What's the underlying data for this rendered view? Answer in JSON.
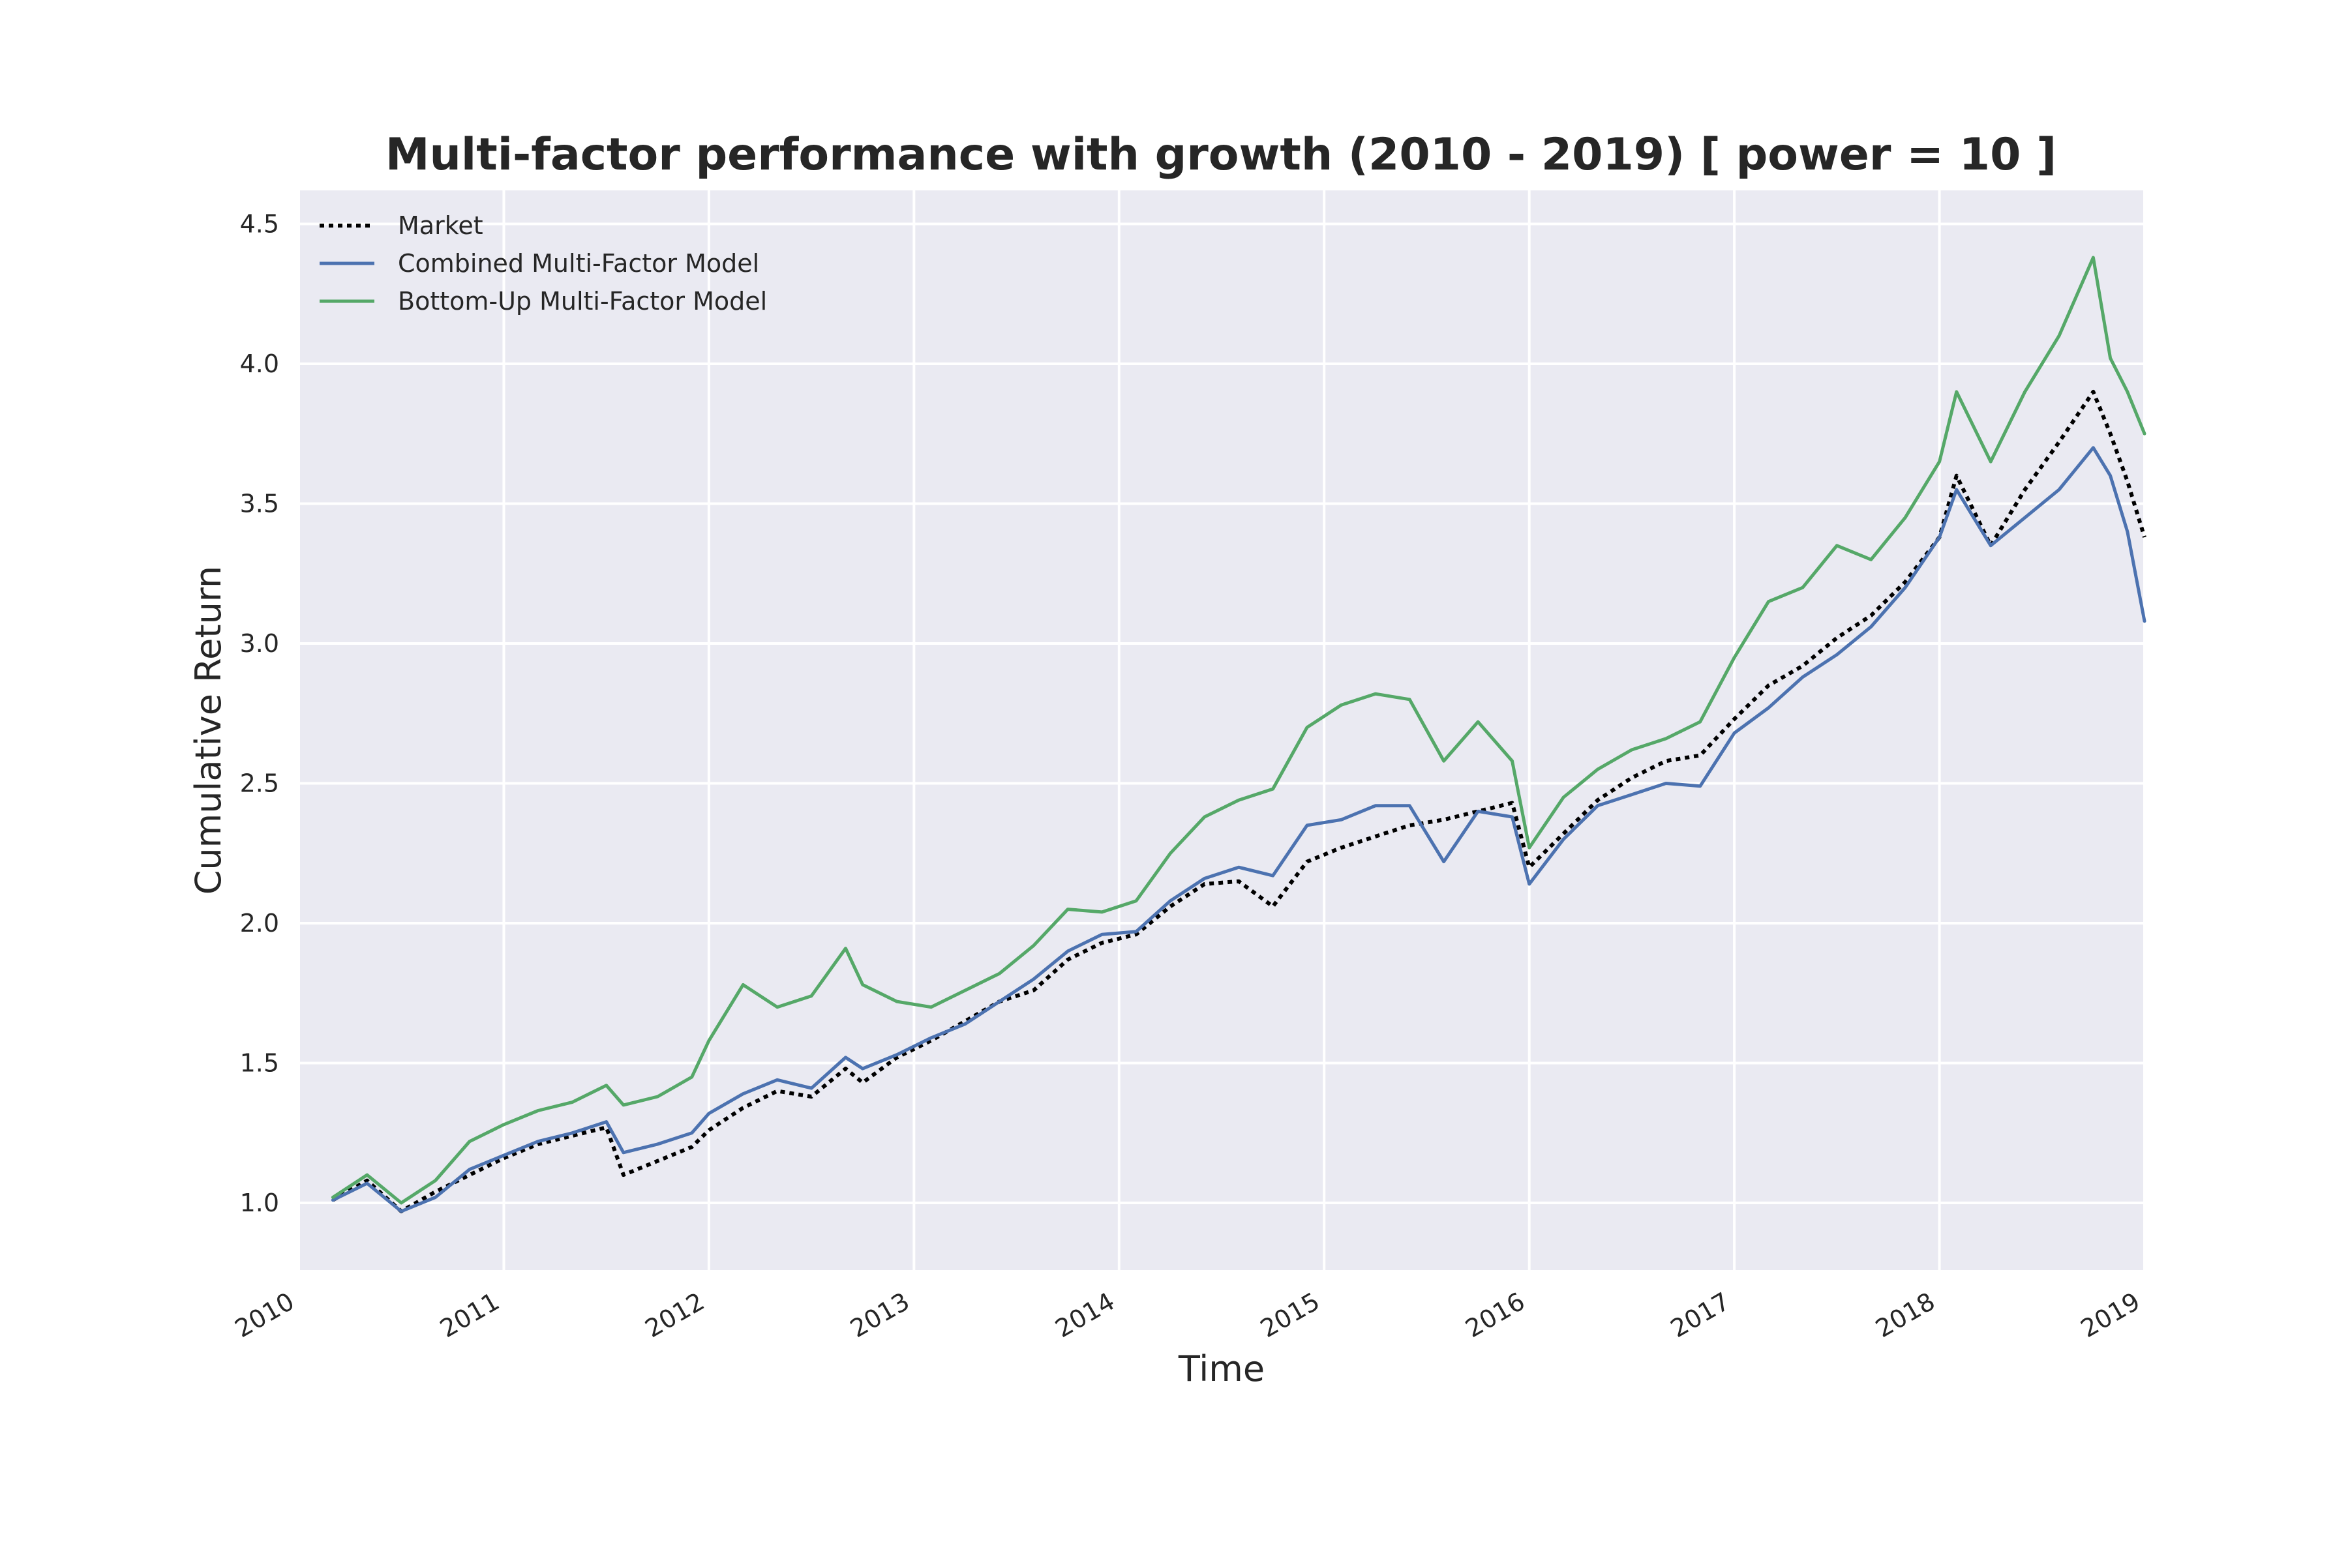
{
  "chart_data": {
    "type": "line",
    "title": "Multi-factor performance with growth (2010 - 2019) [ power = 10 ]",
    "xlabel": "Time",
    "ylabel": "Cumulative Return",
    "xlim": [
      "2010-01-01",
      "2019-01-01"
    ],
    "ylim": [
      0.76,
      4.62
    ],
    "x_ticks": [
      "2010",
      "2011",
      "2012",
      "2013",
      "2014",
      "2015",
      "2016",
      "2017",
      "2018",
      "2019"
    ],
    "y_ticks": [
      "1.0",
      "1.5",
      "2.0",
      "2.5",
      "3.0",
      "3.5",
      "4.0",
      "4.5"
    ],
    "grid": true,
    "legend_position": "top-left",
    "x": [
      "2010-03",
      "2010-05",
      "2010-07",
      "2010-09",
      "2010-11",
      "2011-01",
      "2011-03",
      "2011-05",
      "2011-07",
      "2011-08",
      "2011-10",
      "2011-12",
      "2012-01",
      "2012-03",
      "2012-05",
      "2012-07",
      "2012-09",
      "2012-10",
      "2012-12",
      "2013-02",
      "2013-04",
      "2013-06",
      "2013-08",
      "2013-10",
      "2013-12",
      "2014-02",
      "2014-04",
      "2014-06",
      "2014-08",
      "2014-10",
      "2014-12",
      "2015-02",
      "2015-04",
      "2015-06",
      "2015-08",
      "2015-10",
      "2015-12",
      "2016-01",
      "2016-03",
      "2016-05",
      "2016-07",
      "2016-09",
      "2016-11",
      "2017-01",
      "2017-03",
      "2017-05",
      "2017-07",
      "2017-09",
      "2017-11",
      "2018-01",
      "2018-02",
      "2018-04",
      "2018-06",
      "2018-08",
      "2018-10",
      "2018-11",
      "2018-12",
      "2019-01"
    ],
    "series": [
      {
        "name": "Market",
        "color": "#000000",
        "style": "dotted",
        "values": [
          1.01,
          1.08,
          0.97,
          1.04,
          1.1,
          1.16,
          1.21,
          1.24,
          1.27,
          1.1,
          1.15,
          1.2,
          1.26,
          1.34,
          1.4,
          1.38,
          1.48,
          1.43,
          1.52,
          1.58,
          1.65,
          1.72,
          1.76,
          1.87,
          1.93,
          1.96,
          2.06,
          2.14,
          2.15,
          2.06,
          2.22,
          2.27,
          2.31,
          2.35,
          2.37,
          2.4,
          2.43,
          2.2,
          2.32,
          2.44,
          2.52,
          2.58,
          2.6,
          2.73,
          2.85,
          2.92,
          3.02,
          3.1,
          3.22,
          3.38,
          3.6,
          3.35,
          3.55,
          3.72,
          3.9,
          3.75,
          3.58,
          3.38
        ]
      },
      {
        "name": "Combined Multi-Factor Model",
        "color": "#4c72b0",
        "style": "solid",
        "values": [
          1.01,
          1.07,
          0.97,
          1.02,
          1.12,
          1.17,
          1.22,
          1.25,
          1.29,
          1.18,
          1.21,
          1.25,
          1.32,
          1.39,
          1.44,
          1.41,
          1.52,
          1.48,
          1.53,
          1.59,
          1.64,
          1.72,
          1.8,
          1.9,
          1.96,
          1.97,
          2.08,
          2.16,
          2.2,
          2.17,
          2.35,
          2.37,
          2.42,
          2.42,
          2.22,
          2.4,
          2.38,
          2.14,
          2.3,
          2.42,
          2.46,
          2.5,
          2.49,
          2.68,
          2.77,
          2.88,
          2.96,
          3.06,
          3.2,
          3.38,
          3.55,
          3.35,
          3.45,
          3.55,
          3.7,
          3.6,
          3.4,
          3.08
        ]
      },
      {
        "name": "Bottom-Up Multi-Factor Model",
        "color": "#55a868",
        "style": "solid",
        "values": [
          1.02,
          1.1,
          1.0,
          1.08,
          1.22,
          1.28,
          1.33,
          1.36,
          1.42,
          1.35,
          1.38,
          1.45,
          1.58,
          1.78,
          1.7,
          1.74,
          1.91,
          1.78,
          1.72,
          1.7,
          1.76,
          1.82,
          1.92,
          2.05,
          2.04,
          2.08,
          2.25,
          2.38,
          2.44,
          2.48,
          2.7,
          2.78,
          2.82,
          2.8,
          2.58,
          2.72,
          2.58,
          2.27,
          2.45,
          2.55,
          2.62,
          2.66,
          2.72,
          2.95,
          3.15,
          3.2,
          3.35,
          3.3,
          3.45,
          3.65,
          3.9,
          3.65,
          3.9,
          4.1,
          4.38,
          4.02,
          3.9,
          3.75
        ]
      }
    ]
  }
}
